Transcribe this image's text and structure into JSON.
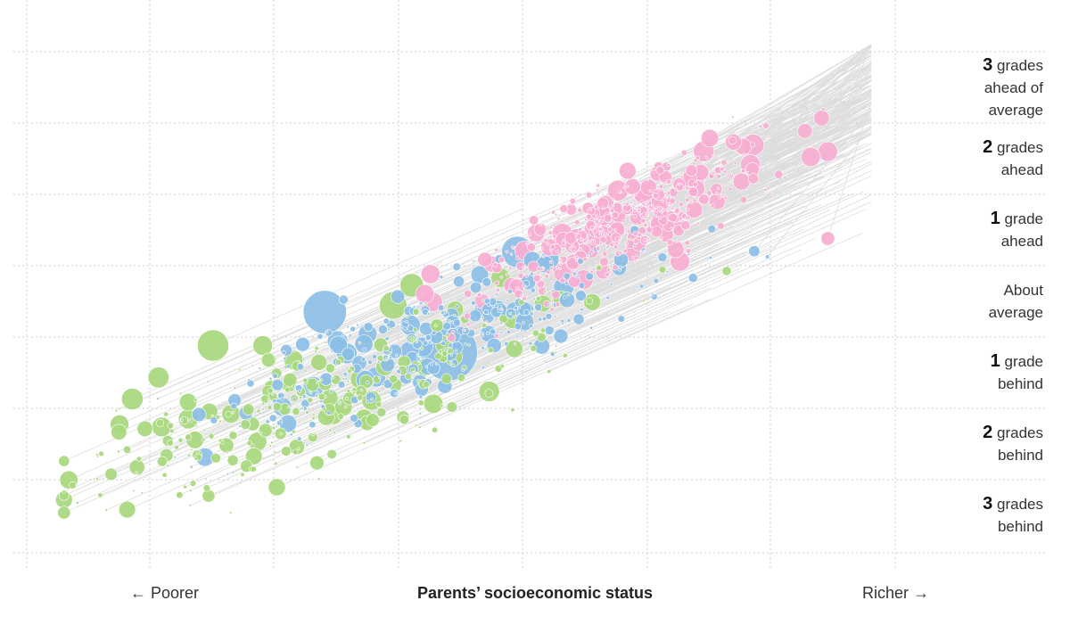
{
  "chart_data": {
    "type": "scatter",
    "title": "",
    "xlabel": "Parents’ socioeconomic status",
    "x_left_label": "← Poorer",
    "x_right_label": "Richer →",
    "ylabel": "",
    "y_labels": [
      {
        "num": "3",
        "rest": " grades",
        "line2": "ahead of",
        "line3": "average"
      },
      {
        "num": "2",
        "rest": " grades",
        "line2": "ahead",
        "line3": ""
      },
      {
        "num": "1",
        "rest": " grade",
        "line2": "ahead",
        "line3": ""
      },
      {
        "num": "",
        "rest": "About",
        "line2": "average",
        "line3": ""
      },
      {
        "num": "1",
        "rest": " grade",
        "line2": "behind",
        "line3": ""
      },
      {
        "num": "2",
        "rest": " grades",
        "line2": "behind",
        "line3": ""
      },
      {
        "num": "3",
        "rest": " grades",
        "line2": "behind",
        "line3": ""
      }
    ],
    "ylim": [
      -4,
      4
    ],
    "xlim": [
      -3.5,
      3.5
    ],
    "grid": true,
    "colors": {
      "pink": "#f7aed1",
      "blue": "#8cbfe6",
      "green": "#a8d87e",
      "connector": "#dddddd",
      "grid": "#cccccc"
    },
    "series": [
      {
        "color_key": "green",
        "seed": 7,
        "count": 330,
        "x_mean": -1.1,
        "x_sd": 1.05,
        "slope": 0.55,
        "intercept": -1.1,
        "noise": 0.45
      },
      {
        "color_key": "blue",
        "seed": 19,
        "count": 300,
        "x_mean": -0.1,
        "x_sd": 0.9,
        "slope": 0.6,
        "intercept": -0.7,
        "noise": 0.4
      },
      {
        "color_key": "pink",
        "seed": 31,
        "count": 420,
        "x_mean": 1.3,
        "x_sd": 0.55,
        "slope": 0.85,
        "intercept": -0.2,
        "noise": 0.35
      }
    ],
    "large_points": [
      {
        "x": -0.1,
        "y": -1.0,
        "size": 2.9,
        "color_key": "blue"
      },
      {
        "x": -1.1,
        "y": -0.4,
        "size": 2.2,
        "color_key": "blue"
      },
      {
        "x": -2.0,
        "y": -0.9,
        "size": 1.6,
        "color_key": "green"
      },
      {
        "x": 0.45,
        "y": 0.5,
        "size": 1.6,
        "color_key": "blue"
      },
      {
        "x": -0.55,
        "y": -0.3,
        "size": 1.4,
        "color_key": "green"
      },
      {
        "x": 2.35,
        "y": 2.1,
        "size": 1.1,
        "color_key": "pink"
      },
      {
        "x": 2.95,
        "y": 2.0,
        "size": 1.0,
        "color_key": "pink"
      },
      {
        "x": -2.65,
        "y": -1.7,
        "size": 1.1,
        "color_key": "green"
      },
      {
        "x": -2.2,
        "y": -2.0,
        "size": 1.0,
        "color_key": "green"
      },
      {
        "x": -1.6,
        "y": -0.9,
        "size": 1.0,
        "color_key": "green"
      },
      {
        "x": 0.8,
        "y": -0.2,
        "size": 0.8,
        "color_key": "green"
      },
      {
        "x": 2.0,
        "y": 2.2,
        "size": 0.9,
        "color_key": "pink"
      },
      {
        "x": 2.9,
        "y": 2.5,
        "size": 0.8,
        "color_key": "pink"
      },
      {
        "x": 2.95,
        "y": 0.7,
        "size": 0.7,
        "color_key": "pink"
      },
      {
        "x": -0.4,
        "y": 0.0,
        "size": 1.2,
        "color_key": "green"
      }
    ]
  }
}
